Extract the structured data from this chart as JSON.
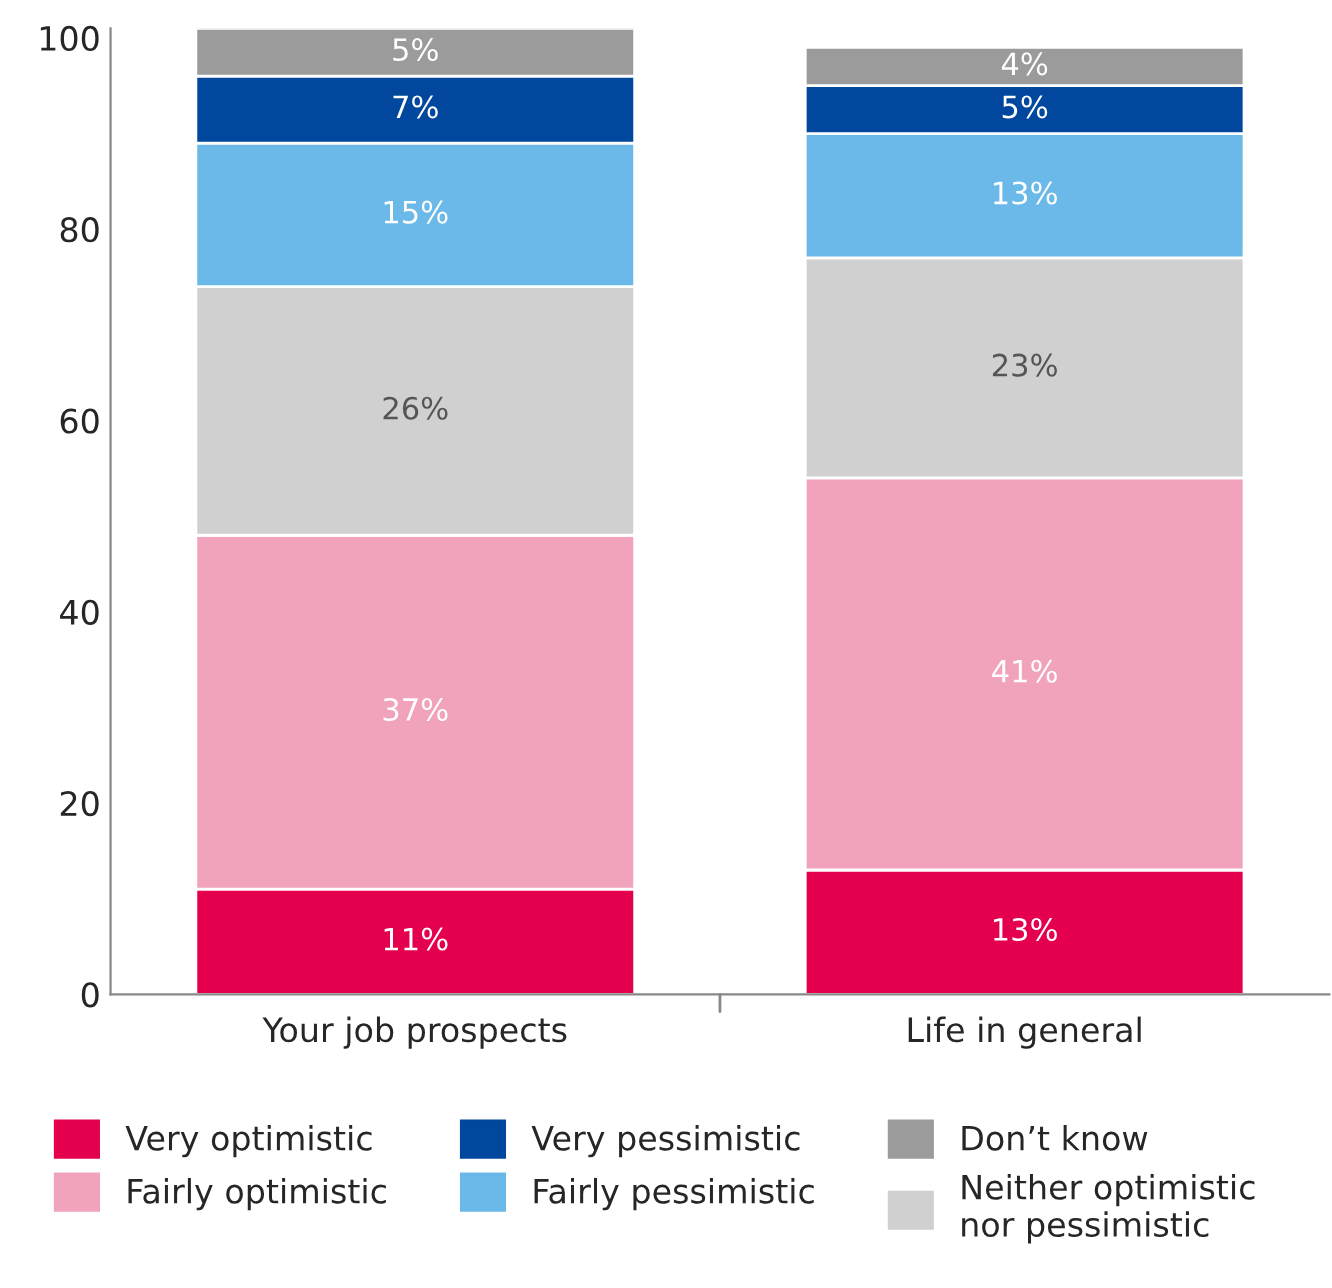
{
  "chart_data": {
    "type": "bar",
    "stacked": true,
    "categories": [
      "Your job prospects",
      "Life in general"
    ],
    "series": [
      {
        "name": "Very optimistic",
        "color": "#e4004f",
        "values": [
          11,
          13
        ],
        "value_labels": [
          "11%",
          "13%"
        ]
      },
      {
        "name": "Fairly optimistic",
        "color": "#f0a3bb",
        "values": [
          37,
          41
        ],
        "value_labels": [
          "37%",
          "41%"
        ]
      },
      {
        "name": "Neither optimistic\nnor pessimistic",
        "color": "#d0d0d0",
        "values": [
          26,
          23
        ],
        "value_labels": [
          "26%",
          "23%"
        ]
      },
      {
        "name": "Fairly pessimistic",
        "color": "#6bb9e8",
        "values": [
          15,
          13
        ],
        "value_labels": [
          "15%",
          "13%"
        ]
      },
      {
        "name": "Very pessimistic",
        "color": "#00479d",
        "values": [
          7,
          5
        ],
        "value_labels": [
          "7%",
          "5%"
        ]
      },
      {
        "name": "Don’t know",
        "color": "#9b9b9b",
        "values": [
          5,
          4
        ],
        "value_labels": [
          "5%",
          "4%"
        ]
      }
    ],
    "ylim": [
      0,
      101
    ],
    "yticks": [
      0,
      20,
      40,
      60,
      80,
      100
    ],
    "grid": false,
    "legend": "bottom"
  }
}
